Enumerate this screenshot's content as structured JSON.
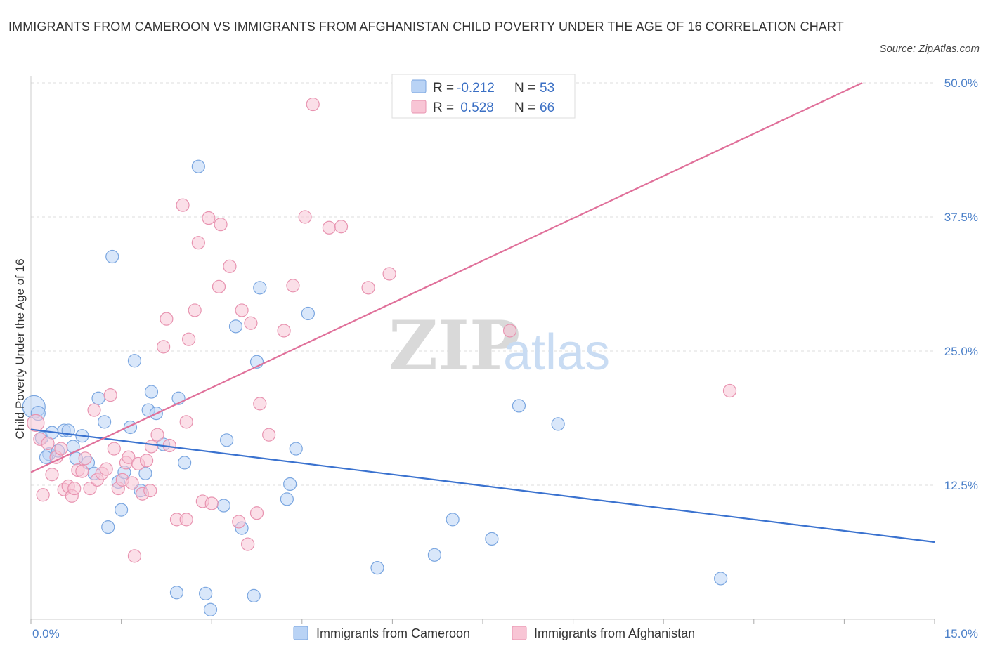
{
  "title": "IMMIGRANTS FROM CAMEROON VS IMMIGRANTS FROM AFGHANISTAN CHILD POVERTY UNDER THE AGE OF 16 CORRELATION CHART",
  "source": "Source: ZipAtlas.com",
  "watermark": {
    "zip": "ZIP",
    "atlas": "atlas"
  },
  "legend": {
    "rows": [
      {
        "r_label": "R =",
        "r_value": "-0.212",
        "n_label": "N =",
        "n_value": "53"
      },
      {
        "r_label": "R =",
        "r_value": " 0.528",
        "n_label": "N =",
        "n_value": "66"
      }
    ]
  },
  "colors": {
    "cameroon_fill": "#b9d3f5",
    "cameroon_stroke": "#7aa6e0",
    "cameroon_line": "#3a72cf",
    "afghanistan_fill": "#f8c5d5",
    "afghanistan_stroke": "#e893b0",
    "afghanistan_line": "#e0709a",
    "grid": "#dddddd",
    "tick_label": "#4a7fc8"
  },
  "chart_data": {
    "type": "scatter",
    "title": "IMMIGRANTS FROM CAMEROON VS IMMIGRANTS FROM AFGHANISTAN CHILD POVERTY UNDER THE AGE OF 16 CORRELATION CHART",
    "xlabel": "",
    "ylabel": "Child Poverty Under the Age of 16",
    "xlim": [
      0,
      15
    ],
    "ylim": [
      0,
      50
    ],
    "x_tick_labels": [
      "0.0%",
      "15.0%"
    ],
    "y_ticks": [
      12.5,
      25.0,
      37.5,
      50.0
    ],
    "y_tick_labels": [
      "12.5%",
      "25.0%",
      "37.5%",
      "50.0%"
    ],
    "grid": true,
    "legend_position": "top-center",
    "series": [
      {
        "name": "Immigrants from Cameroon",
        "r": -0.212,
        "n": 53,
        "trend": {
          "x": [
            0,
            15
          ],
          "y": [
            17.7,
            7.2
          ]
        },
        "points": [
          [
            0.05,
            19.8,
            16
          ],
          [
            0.12,
            19.2,
            10
          ],
          [
            0.18,
            16.9,
            9
          ],
          [
            0.3,
            15.4,
            9
          ],
          [
            0.35,
            17.4,
            9
          ],
          [
            0.45,
            15.7,
            9
          ],
          [
            0.55,
            17.6,
            9
          ],
          [
            0.62,
            17.6,
            9
          ],
          [
            0.7,
            16.1,
            9
          ],
          [
            0.75,
            15.0,
            9
          ],
          [
            0.85,
            17.1,
            9
          ],
          [
            0.95,
            14.6,
            9
          ],
          [
            1.05,
            13.6,
            9
          ],
          [
            1.12,
            20.6,
            9
          ],
          [
            1.22,
            18.4,
            9
          ],
          [
            1.28,
            8.6,
            9
          ],
          [
            1.35,
            33.8,
            9
          ],
          [
            1.45,
            12.8,
            9
          ],
          [
            1.5,
            10.2,
            9
          ],
          [
            1.55,
            13.7,
            9
          ],
          [
            1.65,
            17.9,
            9
          ],
          [
            1.72,
            24.1,
            9
          ],
          [
            1.82,
            12.0,
            9
          ],
          [
            1.9,
            13.6,
            9
          ],
          [
            1.95,
            19.5,
            9
          ],
          [
            2.0,
            21.2,
            9
          ],
          [
            2.08,
            19.2,
            9
          ],
          [
            2.2,
            16.3,
            9
          ],
          [
            2.45,
            20.6,
            9
          ],
          [
            2.55,
            14.6,
            9
          ],
          [
            2.42,
            2.5,
            9
          ],
          [
            2.78,
            42.2,
            9
          ],
          [
            2.9,
            2.4,
            9
          ],
          [
            2.98,
            0.9,
            9
          ],
          [
            3.2,
            10.6,
            9
          ],
          [
            3.25,
            16.7,
            9
          ],
          [
            3.4,
            27.3,
            9
          ],
          [
            3.5,
            8.5,
            9
          ],
          [
            3.7,
            2.2,
            9
          ],
          [
            3.75,
            24.0,
            9
          ],
          [
            3.8,
            30.9,
            9
          ],
          [
            4.25,
            11.2,
            9
          ],
          [
            4.3,
            12.6,
            9
          ],
          [
            4.4,
            15.9,
            9
          ],
          [
            4.6,
            28.5,
            9
          ],
          [
            5.75,
            4.8,
            9
          ],
          [
            6.7,
            6.0,
            9
          ],
          [
            7.0,
            9.3,
            9
          ],
          [
            7.65,
            7.5,
            9
          ],
          [
            8.1,
            19.9,
            9
          ],
          [
            8.75,
            18.2,
            9
          ],
          [
            11.45,
            3.8,
            9
          ],
          [
            0.25,
            15.1,
            9
          ]
        ]
      },
      {
        "name": "Immigrants from Afghanistan",
        "r": 0.528,
        "n": 66,
        "trend": {
          "x": [
            0,
            13.8
          ],
          "y": [
            13.7,
            50.0
          ]
        },
        "points": [
          [
            0.08,
            18.3,
            12
          ],
          [
            0.15,
            16.8,
            9
          ],
          [
            0.2,
            11.6,
            9
          ],
          [
            0.28,
            16.4,
            9
          ],
          [
            0.35,
            13.5,
            9
          ],
          [
            0.42,
            15.1,
            9
          ],
          [
            0.5,
            15.9,
            9
          ],
          [
            0.55,
            12.1,
            9
          ],
          [
            0.62,
            12.4,
            9
          ],
          [
            0.68,
            11.5,
            9
          ],
          [
            0.72,
            12.2,
            9
          ],
          [
            0.78,
            13.9,
            9
          ],
          [
            0.85,
            13.8,
            9
          ],
          [
            0.9,
            15.0,
            9
          ],
          [
            0.98,
            12.2,
            9
          ],
          [
            1.05,
            19.5,
            9
          ],
          [
            1.1,
            13.0,
            9
          ],
          [
            1.18,
            13.6,
            9
          ],
          [
            1.25,
            14.0,
            9
          ],
          [
            1.32,
            20.9,
            9
          ],
          [
            1.38,
            15.9,
            9
          ],
          [
            1.45,
            12.2,
            9
          ],
          [
            1.52,
            13.0,
            9
          ],
          [
            1.58,
            14.6,
            9
          ],
          [
            1.62,
            15.1,
            9
          ],
          [
            1.68,
            12.7,
            9
          ],
          [
            1.72,
            5.9,
            9
          ],
          [
            1.78,
            14.5,
            9
          ],
          [
            1.85,
            11.7,
            9
          ],
          [
            1.92,
            14.8,
            9
          ],
          [
            2.0,
            16.1,
            9
          ],
          [
            2.1,
            17.2,
            9
          ],
          [
            2.2,
            25.4,
            9
          ],
          [
            2.25,
            28.0,
            9
          ],
          [
            2.3,
            16.2,
            9
          ],
          [
            2.42,
            9.3,
            9
          ],
          [
            2.52,
            38.6,
            9
          ],
          [
            2.58,
            18.4,
            9
          ],
          [
            2.62,
            26.1,
            9
          ],
          [
            2.72,
            28.8,
            9
          ],
          [
            2.78,
            35.1,
            9
          ],
          [
            2.85,
            11.0,
            9
          ],
          [
            2.95,
            37.4,
            9
          ],
          [
            3.0,
            10.8,
            9
          ],
          [
            3.12,
            31.0,
            9
          ],
          [
            3.15,
            36.8,
            9
          ],
          [
            3.3,
            32.9,
            9
          ],
          [
            3.45,
            9.1,
            9
          ],
          [
            3.5,
            28.8,
            9
          ],
          [
            3.6,
            7.0,
            9
          ],
          [
            3.65,
            27.6,
            9
          ],
          [
            3.75,
            9.9,
            9
          ],
          [
            3.8,
            20.1,
            9
          ],
          [
            3.95,
            17.2,
            9
          ],
          [
            4.2,
            26.9,
            9
          ],
          [
            4.35,
            31.1,
            9
          ],
          [
            4.55,
            37.5,
            9
          ],
          [
            4.68,
            48.0,
            9
          ],
          [
            4.95,
            36.5,
            9
          ],
          [
            5.15,
            36.6,
            9
          ],
          [
            5.6,
            30.9,
            9
          ],
          [
            5.95,
            32.2,
            9
          ],
          [
            7.95,
            26.9,
            9
          ],
          [
            1.98,
            12.0,
            9
          ],
          [
            2.58,
            9.3,
            9
          ],
          [
            11.6,
            21.3,
            9
          ]
        ]
      }
    ]
  }
}
